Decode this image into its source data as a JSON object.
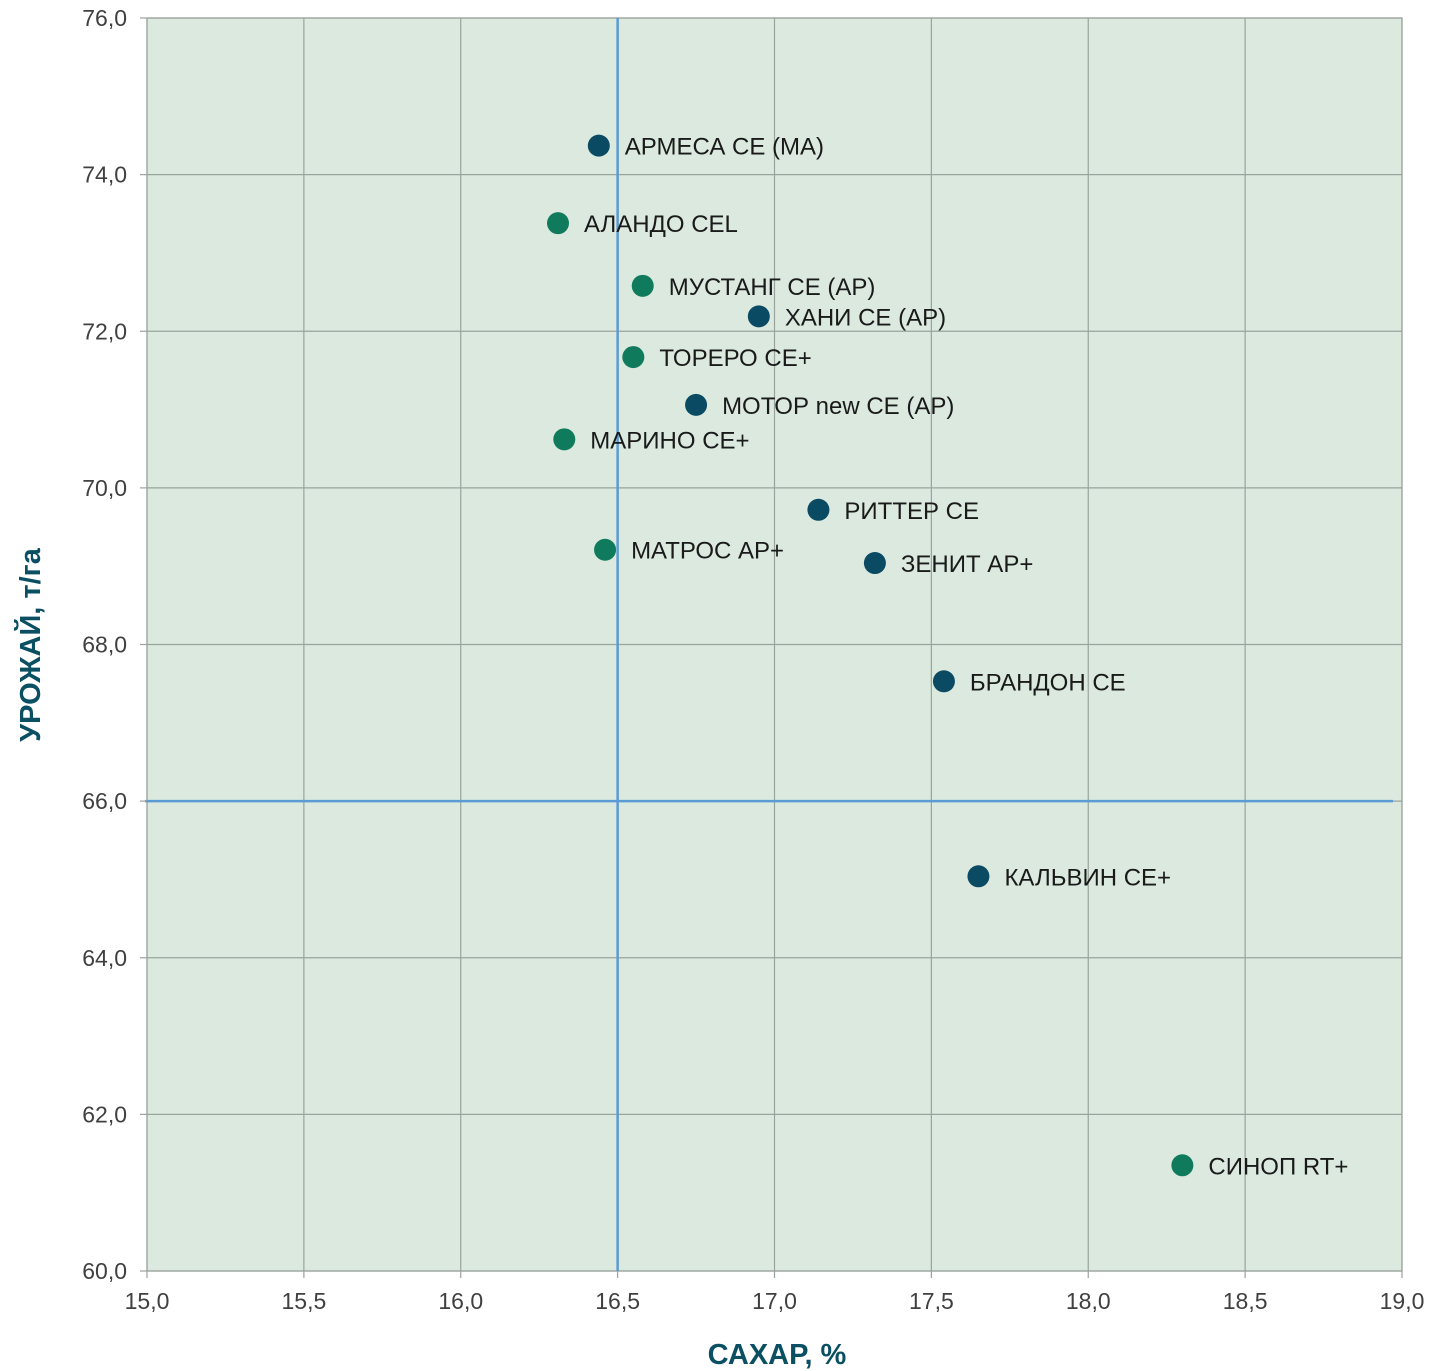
{
  "chart_data": {
    "type": "scatter",
    "title": "",
    "xlabel": "САХАР, %",
    "ylabel": "УРОЖАЙ, т/га",
    "xlim": [
      15.0,
      19.0
    ],
    "ylim": [
      60.0,
      76.0
    ],
    "x_ticks": [
      "15,0",
      "15,5",
      "16,0",
      "16,5",
      "17,0",
      "17,5",
      "18,0",
      "18,5",
      "19,0"
    ],
    "y_ticks": [
      "60,0",
      "62,0",
      "64,0",
      "66,0",
      "68,0",
      "70,0",
      "72,0",
      "74,0",
      "76,0"
    ],
    "grid": true,
    "reference_lines": {
      "x": 16.5,
      "y": 66.0
    },
    "colors": {
      "plot_background": "#dbe9df",
      "grid": "#9aa39c",
      "reference_line": "#5b9bd5",
      "navy_point": "#0b4a63",
      "green_point": "#0f7a5c",
      "axis_title": "#0b4f63"
    },
    "points": [
      {
        "label": "АРМЕСА СЕ (МА)",
        "x": 16.44,
        "y": 74.37,
        "color": "navy"
      },
      {
        "label": "АЛАНДО CEL",
        "x": 16.31,
        "y": 73.38,
        "color": "green"
      },
      {
        "label": "МУСТАНГ СЕ (АР)",
        "x": 16.58,
        "y": 72.58,
        "color": "green"
      },
      {
        "label": "ХАНИ СЕ (АР)",
        "x": 16.95,
        "y": 72.19,
        "color": "navy"
      },
      {
        "label": "ТОРЕРО СЕ+",
        "x": 16.55,
        "y": 71.67,
        "color": "green"
      },
      {
        "label": "МОТОР new СЕ (АР)",
        "x": 16.75,
        "y": 71.06,
        "color": "navy"
      },
      {
        "label": "МАРИНО СЕ+",
        "x": 16.33,
        "y": 70.62,
        "color": "green"
      },
      {
        "label": "РИТТЕР СЕ",
        "x": 17.14,
        "y": 69.72,
        "color": "navy"
      },
      {
        "label": "МАТРОС АР+",
        "x": 16.46,
        "y": 69.21,
        "color": "green"
      },
      {
        "label": "ЗЕНИТ АР+",
        "x": 17.32,
        "y": 69.04,
        "color": "navy"
      },
      {
        "label": "БРАНДОН СЕ",
        "x": 17.54,
        "y": 67.53,
        "color": "navy"
      },
      {
        "label": "КАЛЬВИН СЕ+",
        "x": 17.65,
        "y": 65.04,
        "color": "navy"
      },
      {
        "label": "СИНОП RT+",
        "x": 18.3,
        "y": 61.35,
        "color": "green"
      }
    ]
  }
}
